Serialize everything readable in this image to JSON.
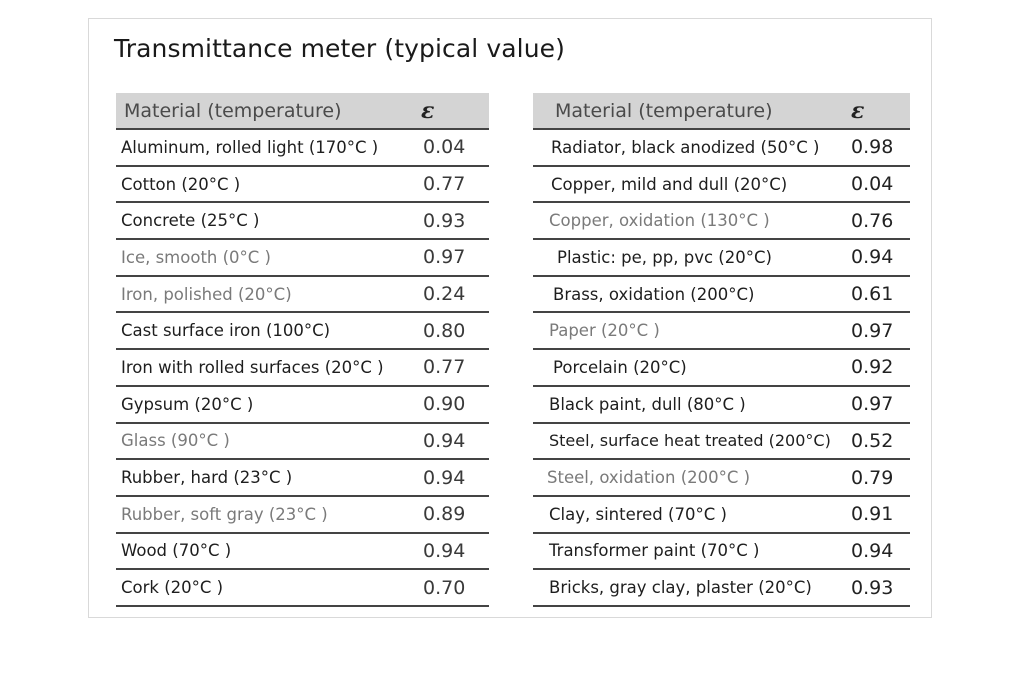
{
  "title": "Transmittance meter (typical value)",
  "tables": [
    {
      "header": {
        "material": "Material (temperature)",
        "epsilon": "ε"
      },
      "rows": [
        {
          "material": "Aluminum, rolled light (170°C )",
          "value": "0.04"
        },
        {
          "material": "Cotton (20°C )",
          "value": "0.77"
        },
        {
          "material": "Concrete (25°C )",
          "value": "0.93"
        },
        {
          "material": "Ice, smooth (0°C )",
          "value": "0.97"
        },
        {
          "material": "Iron, polished (20°C)",
          "value": "0.24"
        },
        {
          "material": "Cast surface iron (100°C)",
          "value": "0.80"
        },
        {
          "material": "Iron with rolled surfaces (20°C )",
          "value": "0.77"
        },
        {
          "material": "Gypsum (20°C )",
          "value": "0.90"
        },
        {
          "material": "Glass (90°C )",
          "value": "0.94"
        },
        {
          "material": "Rubber, hard (23°C )",
          "value": "0.94"
        },
        {
          "material": "Rubber, soft gray (23°C )",
          "value": "0.89"
        },
        {
          "material": "Wood (70°C )",
          "value": "0.94"
        },
        {
          "material": "Cork (20°C )",
          "value": "0.70"
        }
      ]
    },
    {
      "header": {
        "material": "Material (temperature)",
        "epsilon": "ε"
      },
      "rows": [
        {
          "material": "Radiator, black anodized (50°C )",
          "value": "0.98"
        },
        {
          "material": "Copper, mild and dull (20°C)",
          "value": "0.04"
        },
        {
          "material": "Copper, oxidation (130°C )",
          "value": "0.76"
        },
        {
          "material": "Plastic: pe, pp, pvc (20°C)",
          "value": "0.94"
        },
        {
          "material": "Brass, oxidation (200°C)",
          "value": "0.61"
        },
        {
          "material": "Paper (20°C )",
          "value": "0.97"
        },
        {
          "material": "Porcelain (20°C)",
          "value": "0.92"
        },
        {
          "material": "Black paint, dull (80°C )",
          "value": "0.97"
        },
        {
          "material": "Steel, surface heat treated (200°C)",
          "value": "0.52"
        },
        {
          "material": "Steel, oxidation (200°C )",
          "value": "0.79"
        },
        {
          "material": "Clay, sintered (70°C )",
          "value": "0.91"
        },
        {
          "material": "Transformer paint (70°C )",
          "value": "0.94"
        },
        {
          "material": "Bricks, gray clay, plaster (20°C)",
          "value": "0.93"
        }
      ]
    }
  ]
}
